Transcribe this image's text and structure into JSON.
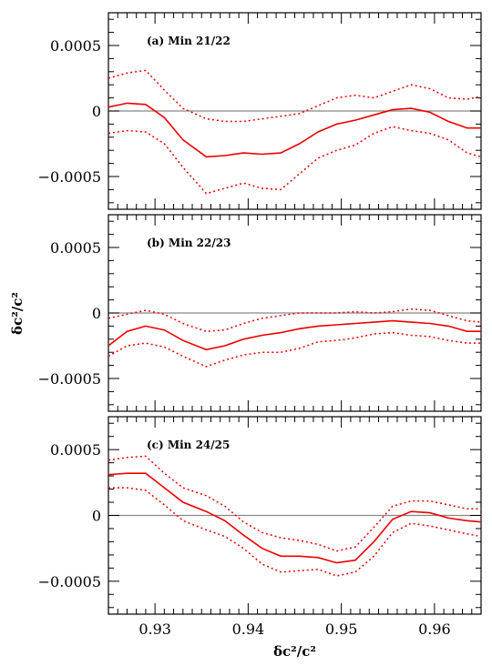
{
  "chart_data": {
    "type": "line",
    "xlabel": "δc²/c²",
    "ylabel": "δc²/c²",
    "xlim": [
      0.925,
      0.965
    ],
    "ylim": [
      -0.00075,
      0.00075
    ],
    "x_tick_labels": [
      "0.93",
      "0.94",
      "0.95",
      "0.96"
    ],
    "x_tick_values": [
      0.93,
      0.94,
      0.95,
      0.96
    ],
    "y_tick_labels": [
      "0.0005",
      "0",
      "−0.0005"
    ],
    "y_tick_values": [
      0.0005,
      0,
      -0.0005
    ],
    "reference_line": 0,
    "colors": {
      "series": "#ee0000",
      "reference": "#888888",
      "axes": "#000000"
    },
    "panels": [
      {
        "label": "(a) Min 21/22",
        "x": [
          0.925,
          0.927,
          0.929,
          0.931,
          0.933,
          0.9355,
          0.9375,
          0.9395,
          0.9415,
          0.9435,
          0.9455,
          0.9475,
          0.9495,
          0.9515,
          0.9535,
          0.9555,
          0.9575,
          0.9595,
          0.9615,
          0.9635,
          0.965
        ],
        "series": [
          {
            "style": "solid",
            "values": [
              3e-05,
              6e-05,
              5e-05,
              -5e-05,
              -0.00022,
              -0.00035,
              -0.00034,
              -0.00032,
              -0.00033,
              -0.00032,
              -0.00025,
              -0.00016,
              -0.0001,
              -7e-05,
              -3e-05,
              1e-05,
              2e-05,
              -1e-05,
              -8e-05,
              -0.00013,
              -0.00013
            ]
          },
          {
            "style": "dotted",
            "values": [
              0.00025,
              0.00029,
              0.00031,
              0.00016,
              2e-05,
              -6e-05,
              -8e-05,
              -8e-05,
              -6e-05,
              -4e-05,
              -2e-05,
              4e-05,
              0.0001,
              0.00012,
              0.0001,
              0.00015,
              0.0002,
              0.00017,
              0.0001,
              9e-05,
              0.00011
            ]
          },
          {
            "style": "dotted",
            "values": [
              -0.00017,
              -0.00015,
              -0.00016,
              -0.00025,
              -0.00043,
              -0.00063,
              -0.00059,
              -0.00055,
              -0.00059,
              -0.0006,
              -0.00048,
              -0.00036,
              -0.0003,
              -0.00026,
              -0.00017,
              -0.00012,
              -0.00015,
              -0.00017,
              -0.00022,
              -0.00032,
              -0.00035
            ]
          }
        ]
      },
      {
        "label": "(b) Min 22/23",
        "x": [
          0.925,
          0.927,
          0.929,
          0.931,
          0.933,
          0.9355,
          0.9375,
          0.9395,
          0.9415,
          0.9435,
          0.9455,
          0.9475,
          0.9495,
          0.9515,
          0.9535,
          0.9555,
          0.9575,
          0.9595,
          0.9615,
          0.9635,
          0.965
        ],
        "series": [
          {
            "style": "solid",
            "values": [
              -0.00025,
              -0.00014,
              -0.0001,
              -0.00013,
              -0.00021,
              -0.00028,
              -0.00025,
              -0.0002,
              -0.00017,
              -0.00015,
              -0.00012,
              -0.0001,
              -9e-05,
              -8e-05,
              -7e-05,
              -6e-05,
              -7e-05,
              -8e-05,
              -0.0001,
              -0.00014,
              -0.00014
            ]
          },
          {
            "style": "dotted",
            "values": [
              -4e-05,
              -1e-05,
              2e-05,
              -1e-05,
              -8e-05,
              -0.00014,
              -0.00013,
              -8e-05,
              -4e-05,
              -2e-05,
              0.0,
              0.0,
              0.0,
              1e-05,
              0.0,
              1e-05,
              3e-05,
              2e-05,
              -2e-05,
              -6e-05,
              -7e-05
            ]
          },
          {
            "style": "dotted",
            "values": [
              -0.00033,
              -0.00025,
              -0.00023,
              -0.00026,
              -0.00033,
              -0.00041,
              -0.00036,
              -0.00032,
              -0.0003,
              -0.0003,
              -0.00027,
              -0.00022,
              -0.00021,
              -0.00019,
              -0.00016,
              -0.00015,
              -0.00017,
              -0.00018,
              -0.00021,
              -0.00023,
              -0.00023
            ]
          }
        ]
      },
      {
        "label": "(c) Min 24/25",
        "x": [
          0.925,
          0.927,
          0.929,
          0.931,
          0.933,
          0.9355,
          0.9375,
          0.9395,
          0.9415,
          0.9435,
          0.9455,
          0.9475,
          0.9495,
          0.9515,
          0.9535,
          0.9555,
          0.9575,
          0.9595,
          0.9615,
          0.9635,
          0.965
        ],
        "series": [
          {
            "style": "solid",
            "values": [
              0.00031,
              0.00032,
              0.00032,
              0.00021,
              0.0001,
              3e-05,
              -4e-05,
              -0.00015,
              -0.00025,
              -0.00031,
              -0.00031,
              -0.00032,
              -0.00036,
              -0.00034,
              -0.0002,
              -3e-05,
              3e-05,
              2e-05,
              -2e-05,
              -4e-05,
              -5e-05
            ]
          },
          {
            "style": "dotted",
            "values": [
              0.00042,
              0.00044,
              0.00045,
              0.00032,
              0.00021,
              0.00015,
              7e-05,
              -5e-05,
              -0.00013,
              -0.00017,
              -0.00019,
              -0.00022,
              -0.00027,
              -0.00024,
              -9e-05,
              7e-05,
              0.00011,
              0.00011,
              8e-05,
              5e-05,
              5e-05
            ]
          },
          {
            "style": "dotted",
            "values": [
              0.00021,
              0.00021,
              0.00019,
              8e-05,
              -4e-05,
              -0.00011,
              -0.00016,
              -0.00025,
              -0.00037,
              -0.00043,
              -0.00042,
              -0.00041,
              -0.00046,
              -0.00043,
              -0.00031,
              -0.00013,
              -6e-05,
              -8e-05,
              -0.00011,
              -0.00014,
              -0.00016
            ]
          }
        ]
      }
    ]
  }
}
